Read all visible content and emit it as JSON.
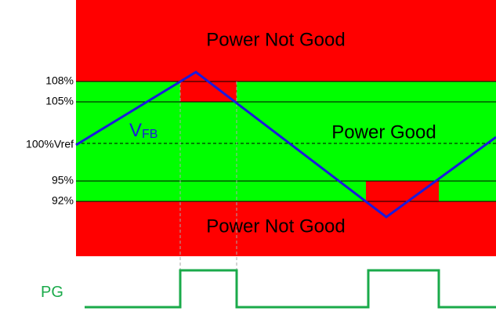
{
  "regions": {
    "top": "Power Not Good",
    "middle": "Power Good",
    "bottom": "Power Not Good"
  },
  "levels": [
    "108%",
    "105%",
    "100%Vref",
    "95%",
    "92%"
  ],
  "signal": {
    "main": "V",
    "sub": "FB"
  },
  "output": "PG"
}
